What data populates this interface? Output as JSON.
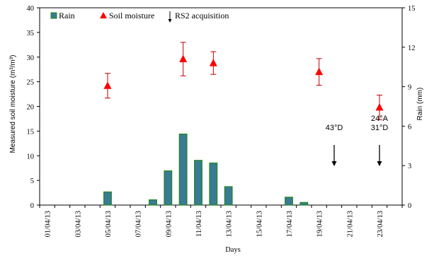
{
  "chart_data": {
    "type": "bar+scatter",
    "xlabel": "Days",
    "ylabel_left": "Measured soil moisture (m³/m³)",
    "ylabel_right": "Rain (mm)",
    "ylim_left": [
      0,
      40
    ],
    "yticks_left": [
      "0",
      "5",
      "10",
      "15",
      "20",
      "25",
      "30",
      "35",
      "40"
    ],
    "ylim_right": [
      0,
      15
    ],
    "yticks_right": [
      "0",
      "3",
      "6",
      "9",
      "12",
      "15"
    ],
    "x_tick_labels": [
      "01/04/13",
      "03/04/13",
      "05/04/13",
      "07/04/13",
      "09/04/13",
      "11/04/13",
      "13/04/13",
      "15/04/13",
      "17/04/13",
      "19/04/13",
      "21/04/13",
      "23/04/13"
    ],
    "legend": {
      "rain": "Rain",
      "soil": "Soil moisture",
      "rs2": "RS2 acquisition"
    },
    "colors": {
      "rain_fill": "#3a7a94",
      "rain_edge": "#1e8a1e",
      "soil_marker": "#ff0000",
      "error_bar": "#c00000"
    },
    "rain": {
      "name": "Rain",
      "days": [
        5,
        8,
        9,
        10,
        11,
        12,
        13,
        17,
        18
      ],
      "values": [
        1.0,
        0.4,
        2.6,
        5.4,
        3.4,
        3.2,
        1.4,
        0.6,
        0.2
      ]
    },
    "soil_moisture": {
      "name": "Soil moisture",
      "days": [
        5,
        10,
        12,
        19,
        23
      ],
      "values": [
        24.2,
        29.6,
        28.8,
        27.0,
        19.8
      ],
      "errors": [
        2.5,
        3.4,
        2.3,
        2.7,
        2.5
      ]
    },
    "rs2_acquisitions": [
      {
        "day": 20,
        "label_lines": [
          "43°D"
        ]
      },
      {
        "day": 23,
        "label_lines": [
          "24°A",
          "31°D"
        ]
      }
    ]
  }
}
